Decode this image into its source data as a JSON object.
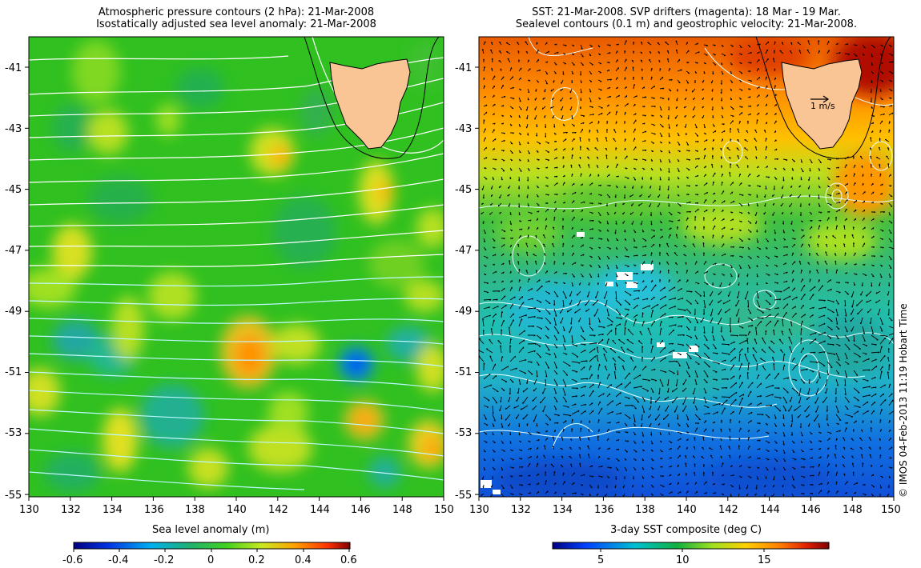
{
  "left_panel": {
    "title_line1": "Atmospheric pressure contours (2 hPa): 21-Mar-2008",
    "title_line2": "Isostatically adjusted sea level anomaly: 21-Mar-2008",
    "colorbar_label": "Sea level anomaly (m)",
    "colorbar_ticks": [
      "-0.6",
      "-0.4",
      "-0.2",
      "0",
      "0.2",
      "0.4",
      "0.6"
    ]
  },
  "right_panel": {
    "title_line1": "SST: 21-Mar-2008. SVP drifters (magenta): 18 Mar - 19 Mar.",
    "title_line2": "Sealevel contours (0.1 m) and geostrophic velocity: 21-Mar-2008.",
    "colorbar_label": "3-day SST composite (deg C)",
    "colorbar_ticks": [
      "5",
      "10",
      "15"
    ],
    "scale_arrow_label": "1 m/s"
  },
  "lat_ticks": [
    "-41",
    "-43",
    "-45",
    "-47",
    "-49",
    "-51",
    "-53",
    "-55"
  ],
  "lon_ticks": [
    "130",
    "132",
    "134",
    "136",
    "138",
    "140",
    "142",
    "144",
    "146",
    "148",
    "150"
  ],
  "credit": "© IMOS 04-Feb-2013 11:19 Hobart Time",
  "colors": {
    "land": "#f9c594",
    "sla_scale": [
      "#00007f",
      "#0050ff",
      "#00c8c8",
      "#20b040",
      "#60d020",
      "#d8e820",
      "#ffa000",
      "#ff3000",
      "#7f0000"
    ],
    "sst_scale": [
      "#000080",
      "#0040ff",
      "#00c0d0",
      "#10b040",
      "#a0e020",
      "#ffd000",
      "#ff8000",
      "#e02000",
      "#800000"
    ]
  }
}
